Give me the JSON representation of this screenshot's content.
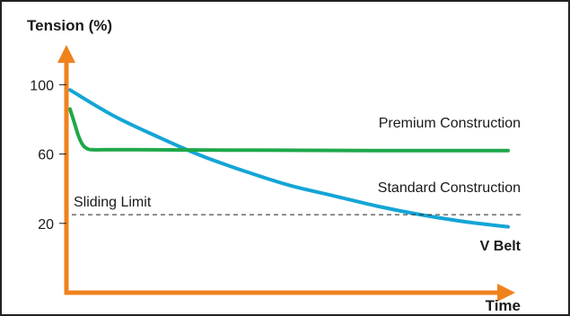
{
  "chart_data": {
    "type": "line",
    "ylabel": "Tension (%)",
    "xlabel": "Time",
    "yticks": [
      100,
      60,
      20
    ],
    "ylim": [
      -20,
      130
    ],
    "xlim": [
      0,
      100
    ],
    "grid": false,
    "colors": {
      "axis": "#f0821e",
      "premium": "#1ea84a",
      "standard": "#14a5d6",
      "limit": "#222222"
    },
    "series": [
      {
        "name": "Standard Construction",
        "color": "#14a5d6",
        "x": [
          0,
          10,
          20,
          30,
          40,
          50,
          60,
          70,
          80,
          90,
          100
        ],
        "y": [
          97,
          82,
          70,
          59,
          50,
          42,
          36,
          30,
          25,
          21,
          18
        ]
      },
      {
        "name": "Premium Construction",
        "color": "#1ea84a",
        "x": [
          0,
          1,
          2,
          3,
          4,
          5,
          8,
          15,
          30,
          50,
          70,
          100
        ],
        "y": [
          86,
          78,
          70,
          65,
          63,
          62.5,
          62.5,
          62.5,
          62.3,
          62.2,
          62,
          62
        ]
      }
    ],
    "annotations": {
      "sliding_limit": {
        "text": "Sliding Limit",
        "y": 25
      },
      "belt_label": "V Belt"
    }
  }
}
